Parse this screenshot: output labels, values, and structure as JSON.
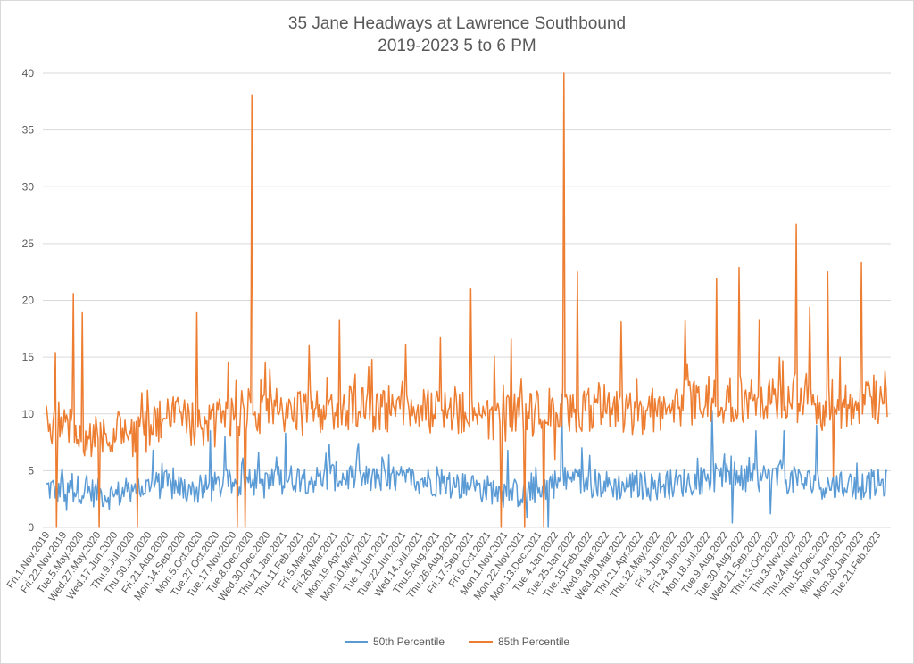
{
  "chart_data": {
    "type": "line",
    "title": "35 Jane Headways at Lawrence Southbound",
    "subtitle": "2019-2023 5 to 6 PM",
    "xlabel": "",
    "ylabel": "",
    "ylim": [
      0,
      40
    ],
    "yticks": [
      0,
      5,
      10,
      15,
      20,
      25,
      30,
      35,
      40
    ],
    "grid": "horizontal",
    "legend_position": "bottom",
    "x_tick_labels": [
      "Fri.1.Nov.2019",
      "Fri.22.Nov.2019",
      "Tue.5.May.2020",
      "Wed.27.May.2020",
      "Wed.17.Jun.2020",
      "Thu.9.Jul.2020",
      "Thu.30.Jul.2020",
      "Fri.21.Aug.2020",
      "Mon.14.Sep.2020",
      "Mon.5.Oct.2020",
      "Tue.27.Oct.2020",
      "Tue.17.Nov.2020",
      "Tue.8.Dec.2020",
      "Wed.30.Dec.2020",
      "Thu.21.Jan.2021",
      "Thu.11.Feb.2021",
      "Fri.5.Mar.2021",
      "Fri.26.Mar.2021",
      "Mon.19.Apr.2021",
      "Mon.10.May.2021",
      "Tue.1.Jun.2021",
      "Tue.22.Jun.2021",
      "Wed.14.Jul.2021",
      "Thu.5.Aug.2021",
      "Thu.26.Aug.2021",
      "Fri.17.Sep.2021",
      "Fri.8.Oct.2021",
      "Mon.1.Nov.2021",
      "Mon.22.Nov.2021",
      "Mon.13.Dec.2021",
      "Tue.4.Jan.2022",
      "Tue.25.Jan.2022",
      "Tue.15.Feb.2022",
      "Wed.9.Mar.2022",
      "Wed.30.Mar.2022",
      "Thu.21.Apr.2022",
      "Thu.12.May.2022",
      "Fri.3.Jun.2022",
      "Fri.24.Jun.2022",
      "Mon.18.Jul.2022",
      "Tue.9.Aug.2022",
      "Tue.30.Aug.2022",
      "Wed.21.Sep.2022",
      "Thu.13.Oct.2022",
      "Thu.3.Nov.2022",
      "Thu.24.Nov.2022",
      "Thu.15.Dec.2022",
      "Mon.9.Jan.2023",
      "Mon.30.Jan.2023",
      "Tue.21.Feb.2023"
    ],
    "anchors_series": [
      {
        "name": "50th Percentile",
        "color": "#5b9bd5",
        "baseline": [
          3.5,
          3.2,
          3.4,
          3.0,
          2.8,
          3.2,
          3.6,
          3.8,
          3.4,
          3.2,
          3.6,
          3.8,
          4.0,
          3.8,
          4.2,
          4.4,
          4.2,
          4.5,
          4.4,
          4.2,
          4.0,
          4.2,
          4.3,
          4.0,
          3.8,
          3.6,
          3.4,
          3.2,
          3.0,
          3.3,
          3.8,
          4.2,
          4.0,
          3.8,
          3.6,
          3.8,
          3.6,
          3.8,
          4.0,
          4.2,
          4.4,
          4.2,
          4.3,
          4.5,
          4.2,
          4.0,
          3.8,
          3.6,
          3.7,
          3.8
        ],
        "peaks": [
          [
            0.9,
            5.2
          ],
          [
            6.3,
            6.8
          ],
          [
            9.7,
            8.5
          ],
          [
            10.6,
            8.0
          ],
          [
            12.6,
            6.6
          ],
          [
            14.2,
            8.3
          ],
          [
            16.8,
            7.3
          ],
          [
            18.5,
            7.4
          ],
          [
            27.4,
            6.8
          ],
          [
            30.6,
            11.7
          ],
          [
            31.8,
            7.0
          ],
          [
            39.5,
            10.3
          ],
          [
            42.1,
            8.5
          ],
          [
            43.8,
            8.5
          ],
          [
            45.7,
            9.0
          ]
        ],
        "dips": [
          [
            1.2,
            1.5
          ],
          [
            27.1,
            1.8
          ],
          [
            28.5,
            0.9
          ],
          [
            29.8,
            0.0
          ],
          [
            40.7,
            0.4
          ],
          [
            43.0,
            1.2
          ]
        ]
      },
      {
        "name": "85th Percentile",
        "color": "#ed7d31",
        "baseline": [
          9.0,
          9.5,
          8.0,
          7.8,
          7.9,
          8.2,
          8.5,
          9.5,
          9.5,
          9.0,
          9.0,
          9.5,
          10.5,
          10.0,
          10.2,
          10.0,
          10.3,
          10.5,
          10.5,
          10.4,
          10.3,
          10.5,
          10.6,
          10.2,
          10.5,
          10.0,
          9.8,
          9.5,
          9.8,
          10.0,
          10.5,
          10.5,
          10.2,
          10.8,
          10.5,
          10.0,
          10.3,
          10.8,
          11.0,
          11.0,
          11.2,
          11.0,
          11.5,
          11.3,
          11.0,
          10.8,
          10.5,
          10.5,
          10.8,
          11.0
        ],
        "peaks": [
          [
            0.5,
            15.4
          ],
          [
            1.6,
            20.6
          ],
          [
            2.1,
            18.9
          ],
          [
            8.9,
            18.9
          ],
          [
            10.8,
            14.5
          ],
          [
            12.2,
            38.1
          ],
          [
            13.0,
            14.5
          ],
          [
            15.6,
            16.0
          ],
          [
            17.4,
            18.3
          ],
          [
            19.3,
            14.8
          ],
          [
            21.3,
            16.1
          ],
          [
            23.4,
            16.7
          ],
          [
            25.2,
            21.0
          ],
          [
            26.6,
            15.1
          ],
          [
            27.6,
            16.6
          ],
          [
            30.7,
            40.0
          ],
          [
            31.5,
            22.5
          ],
          [
            34.1,
            18.1
          ],
          [
            37.9,
            18.2
          ],
          [
            39.8,
            21.9
          ],
          [
            41.1,
            22.9
          ],
          [
            42.3,
            18.3
          ],
          [
            43.5,
            15.0
          ],
          [
            44.5,
            26.7
          ],
          [
            45.3,
            19.4
          ],
          [
            46.4,
            22.5
          ],
          [
            47.1,
            15.0
          ],
          [
            48.4,
            23.3
          ]
        ],
        "dips": [
          [
            0.6,
            0.0
          ],
          [
            3.1,
            0.0
          ],
          [
            5.4,
            0.0
          ],
          [
            11.3,
            0.0
          ],
          [
            11.8,
            0.0
          ],
          [
            27.0,
            0.0
          ],
          [
            28.4,
            0.0
          ],
          [
            29.5,
            0.0
          ],
          [
            30.2,
            6.0
          ],
          [
            46.7,
            4.5
          ]
        ]
      }
    ]
  },
  "legend": {
    "series1": "50th Percentile",
    "series2": "85th Percentile"
  }
}
